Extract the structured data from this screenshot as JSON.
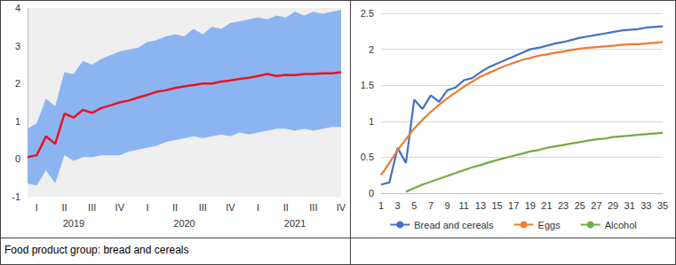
{
  "caption": "Food product group: bread and cereals",
  "chart_data": [
    {
      "type": "line",
      "categories": [
        null,
        "I",
        null,
        null,
        "II",
        null,
        null,
        "III",
        null,
        null,
        "IV",
        null,
        null,
        "I",
        null,
        null,
        "II",
        null,
        null,
        "III",
        null,
        null,
        "IV",
        null,
        null,
        "I",
        null,
        null,
        "II",
        null,
        null,
        "III",
        null,
        null,
        "IV"
      ],
      "category_groups": [
        null,
        null,
        null,
        null,
        null,
        "2019",
        null,
        null,
        null,
        null,
        null,
        null,
        null,
        null,
        null,
        null,
        null,
        "2020",
        null,
        null,
        null,
        null,
        null,
        null,
        null,
        null,
        null,
        null,
        null,
        "2021",
        null,
        null,
        null,
        null,
        null
      ],
      "series": [
        {
          "color": "#e8141e",
          "values": [
            0.05,
            0.1,
            0.6,
            0.4,
            1.2,
            1.1,
            1.3,
            1.22,
            1.35,
            1.42,
            1.5,
            1.55,
            1.63,
            1.7,
            1.78,
            1.82,
            1.88,
            1.92,
            1.96,
            2.0,
            2.0,
            2.05,
            2.08,
            2.12,
            2.15,
            2.2,
            2.25,
            2.2,
            2.23,
            2.22,
            2.25,
            2.25,
            2.27,
            2.27,
            2.3
          ]
        }
      ],
      "band": {
        "color": "#8cb4f0",
        "lower": [
          -0.65,
          -0.7,
          -0.3,
          -0.65,
          0.1,
          -0.05,
          0.05,
          0.05,
          0.1,
          0.1,
          0.1,
          0.2,
          0.25,
          0.3,
          0.35,
          0.45,
          0.5,
          0.55,
          0.6,
          0.55,
          0.6,
          0.65,
          0.6,
          0.7,
          0.65,
          0.7,
          0.75,
          0.8,
          0.8,
          0.75,
          0.8,
          0.75,
          0.8,
          0.85,
          0.85
        ],
        "upper": [
          0.8,
          0.95,
          1.6,
          1.4,
          2.3,
          2.25,
          2.6,
          2.5,
          2.65,
          2.75,
          2.85,
          2.9,
          2.95,
          3.1,
          3.15,
          3.25,
          3.3,
          3.25,
          3.45,
          3.3,
          3.5,
          3.45,
          3.6,
          3.65,
          3.7,
          3.75,
          3.7,
          3.8,
          3.75,
          3.9,
          3.8,
          3.9,
          3.85,
          3.9,
          3.95
        ]
      },
      "ylim": [
        -1,
        4
      ],
      "yticks": [
        -1,
        0,
        1,
        2,
        3,
        4
      ],
      "grid": false
    },
    {
      "type": "line",
      "x": [
        1,
        2,
        3,
        4,
        5,
        6,
        7,
        8,
        9,
        10,
        11,
        12,
        13,
        14,
        15,
        16,
        17,
        18,
        19,
        20,
        21,
        22,
        23,
        24,
        25,
        26,
        27,
        28,
        29,
        30,
        31,
        32,
        33,
        34,
        35
      ],
      "series": [
        {
          "name": "Bread and cereals",
          "color": "#4472c4",
          "marker": "none",
          "line_style": "solid",
          "values": [
            0.12,
            0.15,
            0.63,
            0.42,
            1.3,
            1.17,
            1.36,
            1.27,
            1.43,
            1.47,
            1.57,
            1.6,
            1.68,
            1.75,
            1.8,
            1.85,
            1.9,
            1.95,
            2.0,
            2.02,
            2.05,
            2.08,
            2.1,
            2.13,
            2.16,
            2.18,
            2.2,
            2.22,
            2.24,
            2.26,
            2.27,
            2.28,
            2.3,
            2.31,
            2.32
          ]
        },
        {
          "name": "Eggs",
          "color": "#ed7d31",
          "marker": "none",
          "line_style": "solid",
          "values": [
            0.25,
            0.42,
            0.6,
            0.75,
            0.9,
            1.02,
            1.13,
            1.23,
            1.32,
            1.4,
            1.48,
            1.55,
            1.62,
            1.67,
            1.72,
            1.77,
            1.81,
            1.85,
            1.88,
            1.91,
            1.93,
            1.95,
            1.97,
            1.99,
            2.01,
            2.02,
            2.03,
            2.04,
            2.05,
            2.06,
            2.07,
            2.07,
            2.08,
            2.09,
            2.1
          ]
        },
        {
          "name": "Alcohol",
          "color": "#70ad47",
          "marker": "none",
          "line_style": "solid",
          "values": [
            null,
            null,
            null,
            0.02,
            0.07,
            0.12,
            0.16,
            0.2,
            0.24,
            0.28,
            0.32,
            0.36,
            0.39,
            0.43,
            0.46,
            0.49,
            0.52,
            0.55,
            0.58,
            0.6,
            0.63,
            0.65,
            0.67,
            0.69,
            0.71,
            0.73,
            0.75,
            0.76,
            0.78,
            0.79,
            0.8,
            0.81,
            0.82,
            0.83,
            0.84
          ]
        }
      ],
      "xlim": [
        1,
        35
      ],
      "xticks": [
        1,
        3,
        5,
        7,
        9,
        11,
        13,
        15,
        17,
        19,
        21,
        23,
        25,
        27,
        29,
        31,
        33,
        35
      ],
      "ylim": [
        0,
        2.5
      ],
      "yticks": [
        0,
        0.5,
        1,
        1.5,
        2,
        2.5
      ],
      "grid": true,
      "legend": "bottom"
    }
  ]
}
